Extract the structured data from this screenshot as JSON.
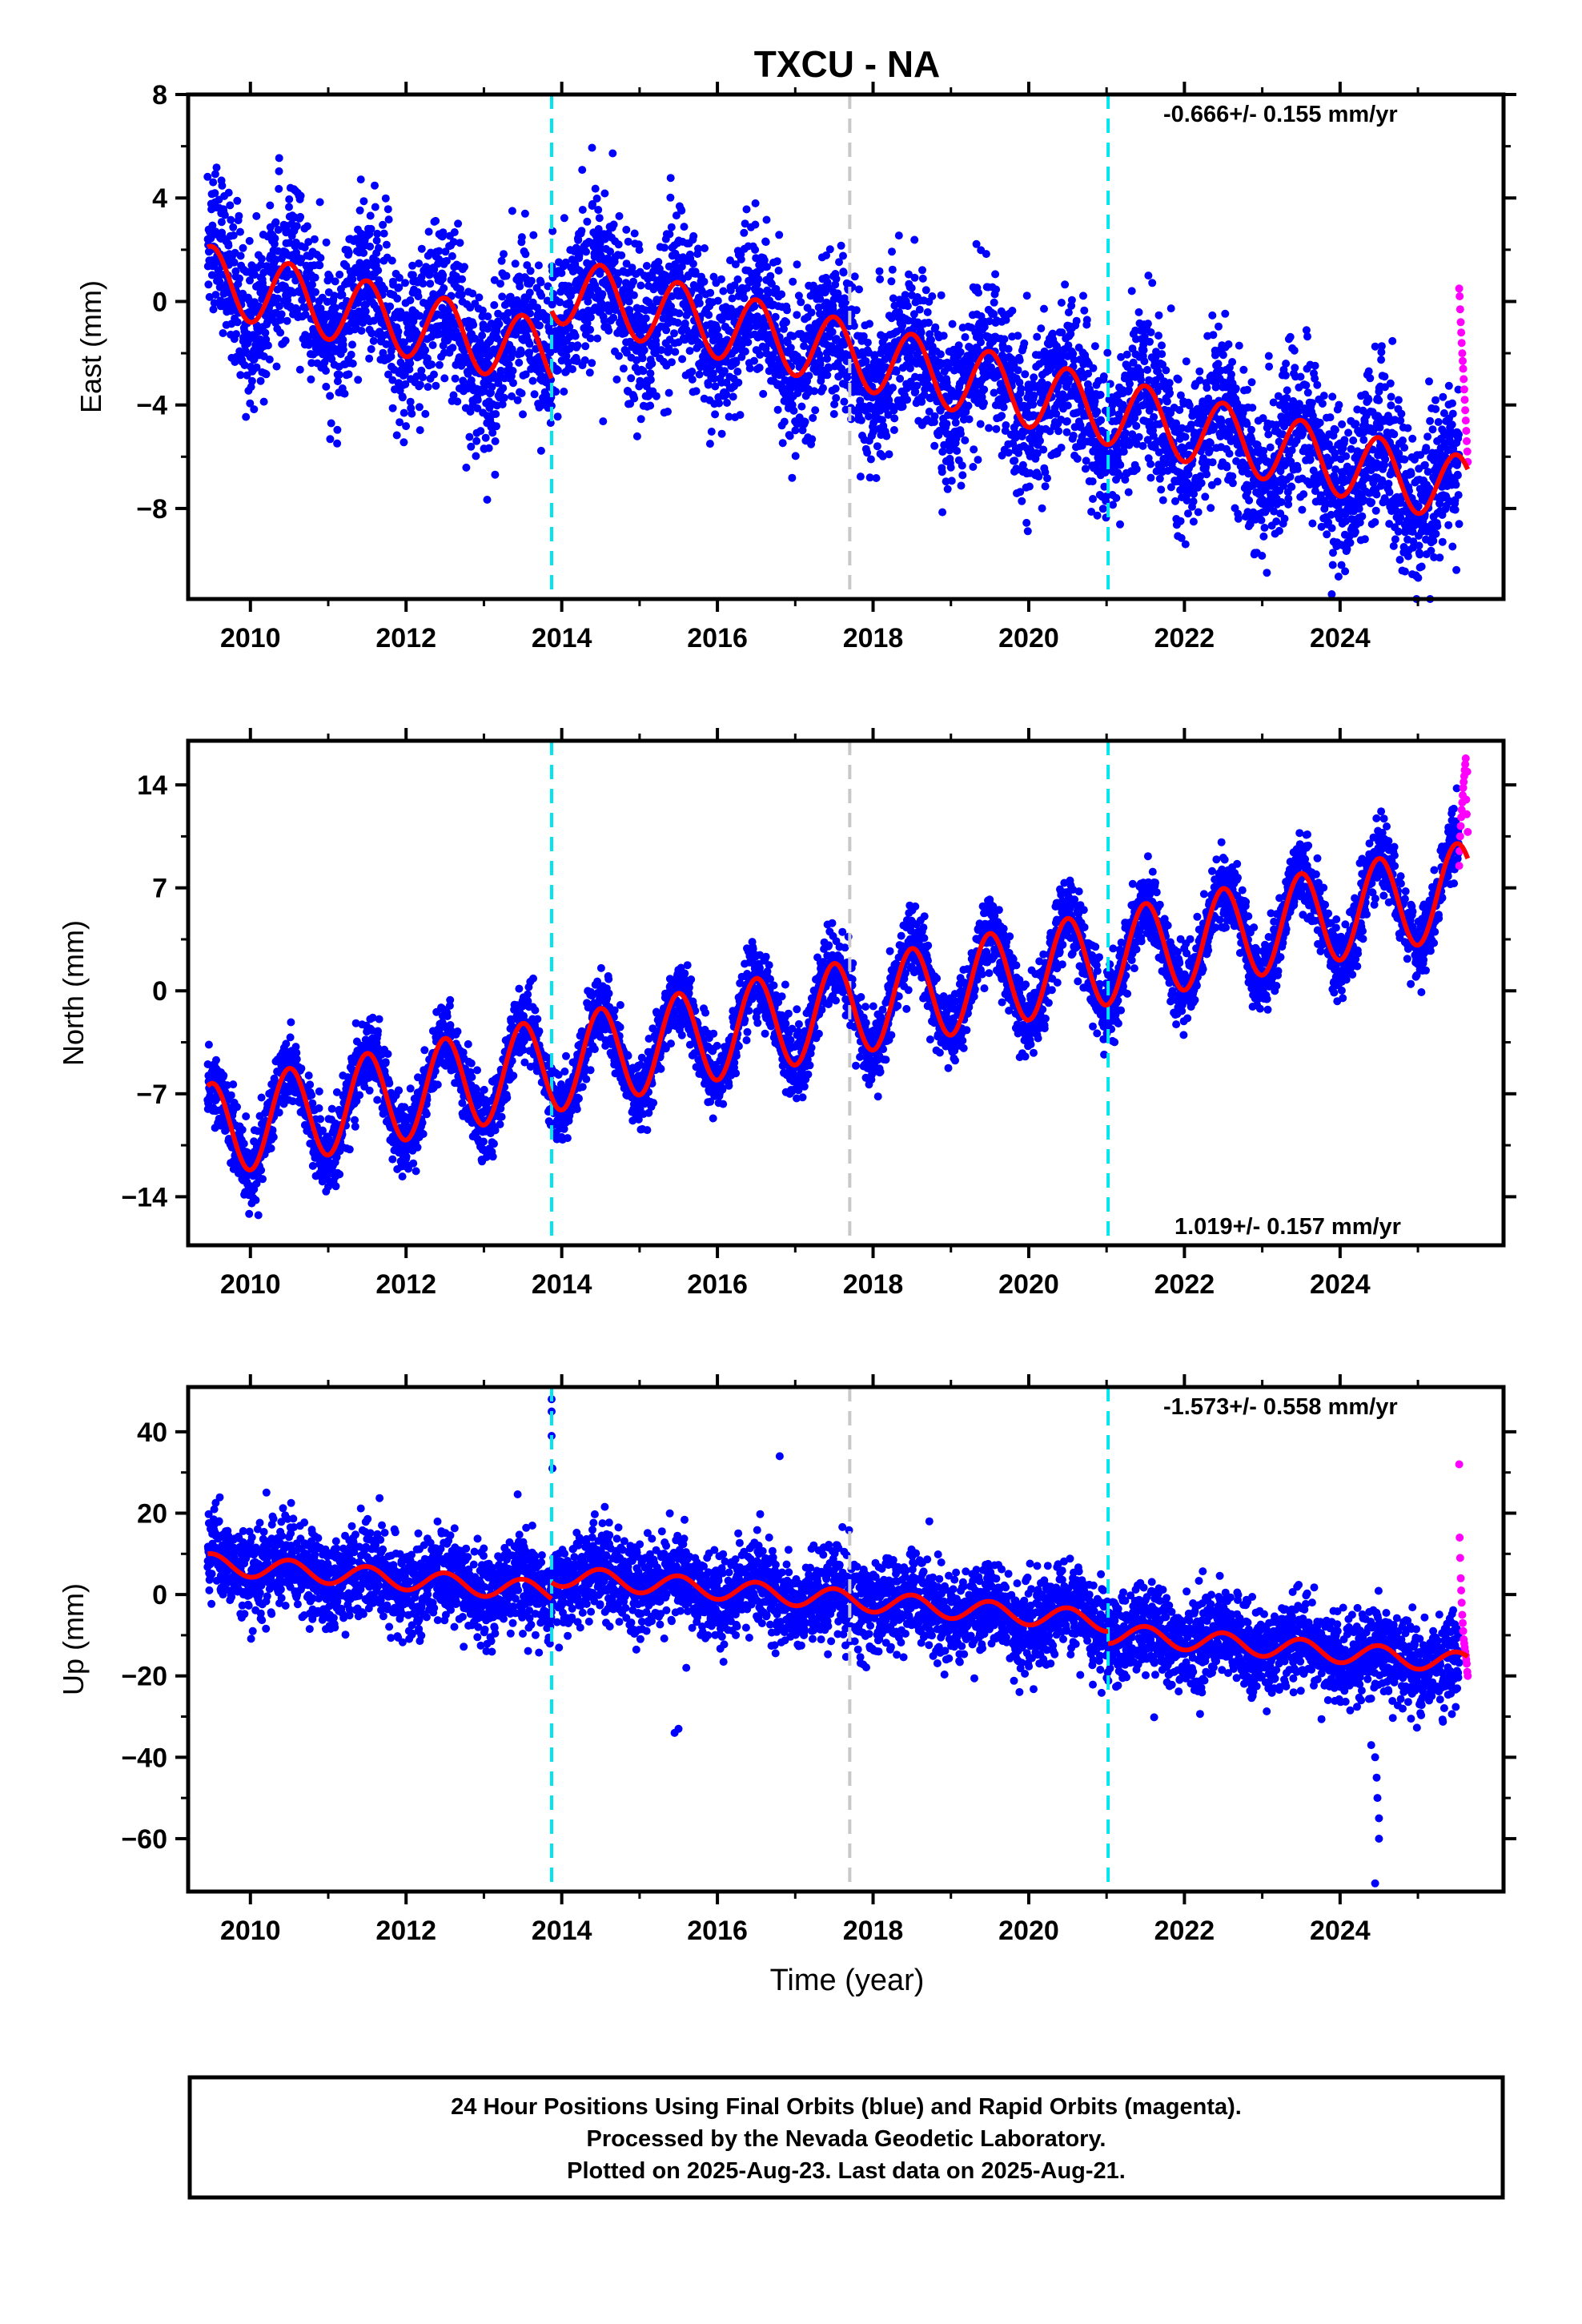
{
  "title": "TXCU - NA",
  "xlabel": "Time (year)",
  "colors": {
    "final": "#0000ff",
    "rapid": "#ff00ff",
    "model": "#ff0000",
    "antenna_offset": "#00e5ee",
    "equipment_change": "#c8c8c8"
  },
  "chart_data": [
    {
      "type": "scatter",
      "component": "East",
      "ylabel": "East (mm)",
      "ylim": [
        -11.5,
        8
      ],
      "yticks": [
        -8,
        -4,
        0,
        4,
        8
      ],
      "xlim": [
        2009.2,
        2026.1
      ],
      "xticks": [
        2010,
        2012,
        2014,
        2016,
        2018,
        2020,
        2022,
        2024
      ],
      "rate_label": "-0.666+/- 0.155 mm/yr",
      "rate_mm_per_yr": -0.666,
      "rate_sigma": 0.155,
      "seasonal_amplitude_mm": 1.3,
      "offsets": [
        {
          "t": 2013.87,
          "dy": 2.6
        }
      ],
      "vlines": [
        {
          "t": 2013.87,
          "kind": "antenna_offset"
        },
        {
          "t": 2017.7,
          "kind": "equipment_change"
        },
        {
          "t": 2021.02,
          "kind": "antenna_offset"
        }
      ],
      "data_start": 2009.45,
      "data_end": 2025.64,
      "rapid_start": 2025.53,
      "model_start_value": 2.1,
      "scatter_sd_mm": 1.5,
      "rapid_points": [
        0.5,
        0.2,
        -0.3,
        -0.8,
        -1.2,
        -1.6,
        -2.0,
        -2.3,
        -2.6,
        -3.0,
        -3.4,
        -3.8,
        -4.2,
        -4.6,
        -5.0,
        -5.4,
        -5.8,
        -6.2
      ]
    },
    {
      "type": "scatter",
      "component": "North",
      "ylabel": "North (mm)",
      "ylim": [
        -17.3,
        17
      ],
      "yticks": [
        -14,
        -7,
        0,
        7,
        14
      ],
      "xlim": [
        2009.2,
        2026.1
      ],
      "xticks": [
        2010,
        2012,
        2014,
        2016,
        2018,
        2020,
        2022,
        2024
      ],
      "rate_label": "1.019+/- 0.157 mm/yr",
      "rate_mm_per_yr": 1.019,
      "rate_sigma": 0.157,
      "seasonal_amplitude_mm": 3.2,
      "offsets": [],
      "vlines": [
        {
          "t": 2013.87,
          "kind": "antenna_offset"
        },
        {
          "t": 2017.7,
          "kind": "equipment_change"
        },
        {
          "t": 2021.02,
          "kind": "antenna_offset"
        }
      ],
      "data_start": 2009.45,
      "data_end": 2025.64,
      "rapid_start": 2025.53,
      "model_start_value": -6.5,
      "scatter_sd_mm": 1.2,
      "rapid_points": [
        8.5,
        9.5,
        10.5,
        11.2,
        11.8,
        12.3,
        12.8,
        13.3,
        13.8,
        14.2,
        14.6,
        15.0,
        15.4,
        15.8,
        13.0,
        12.0,
        14.9,
        10.8
      ]
    },
    {
      "type": "scatter",
      "component": "Up",
      "ylabel": "Up (mm)",
      "ylim": [
        -73,
        51
      ],
      "yticks": [
        -60,
        -40,
        -20,
        0,
        20,
        40
      ],
      "xlim": [
        2009.2,
        2026.1
      ],
      "xticks": [
        2010,
        2012,
        2014,
        2016,
        2018,
        2020,
        2022,
        2024
      ],
      "rate_label": "-1.573+/- 0.558 mm/yr",
      "rate_mm_per_yr": -1.573,
      "rate_sigma": 0.558,
      "seasonal_amplitude_mm": 2.5,
      "offsets": [
        {
          "t": 2013.87,
          "dy": 4.0
        },
        {
          "t": 2021.02,
          "dy": -3.0
        }
      ],
      "vlines": [
        {
          "t": 2013.87,
          "kind": "antenna_offset"
        },
        {
          "t": 2017.7,
          "kind": "equipment_change"
        },
        {
          "t": 2021.02,
          "kind": "antenna_offset"
        }
      ],
      "data_start": 2009.45,
      "data_end": 2025.64,
      "rapid_start": 2025.53,
      "model_start_value": 10,
      "scatter_sd_mm": 5.5,
      "outliers": [
        [
          2013.87,
          48
        ],
        [
          2013.87,
          45
        ],
        [
          2013.87,
          39
        ],
        [
          2013.88,
          31
        ],
        [
          2016.8,
          34
        ],
        [
          2015.45,
          -34
        ],
        [
          2015.5,
          -33
        ],
        [
          2015.6,
          -18
        ],
        [
          2024.45,
          -40
        ],
        [
          2024.47,
          -45
        ],
        [
          2024.48,
          -50
        ],
        [
          2024.5,
          -55
        ],
        [
          2024.5,
          -60
        ],
        [
          2024.45,
          -71
        ],
        [
          2024.4,
          -37
        ]
      ],
      "rapid_points": [
        32,
        14,
        9,
        4,
        1,
        -2,
        -5,
        -7,
        -9,
        -11,
        -12,
        -13,
        -14,
        -15,
        -16,
        -17,
        -19,
        -20
      ]
    }
  ],
  "footer": {
    "line1": "24 Hour Positions Using Final Orbits (blue) and Rapid Orbits (magenta).",
    "line2": "Processed by the Nevada Geodetic Laboratory.",
    "line3": "Plotted on 2025-Aug-23. Last data on 2025-Aug-21."
  }
}
